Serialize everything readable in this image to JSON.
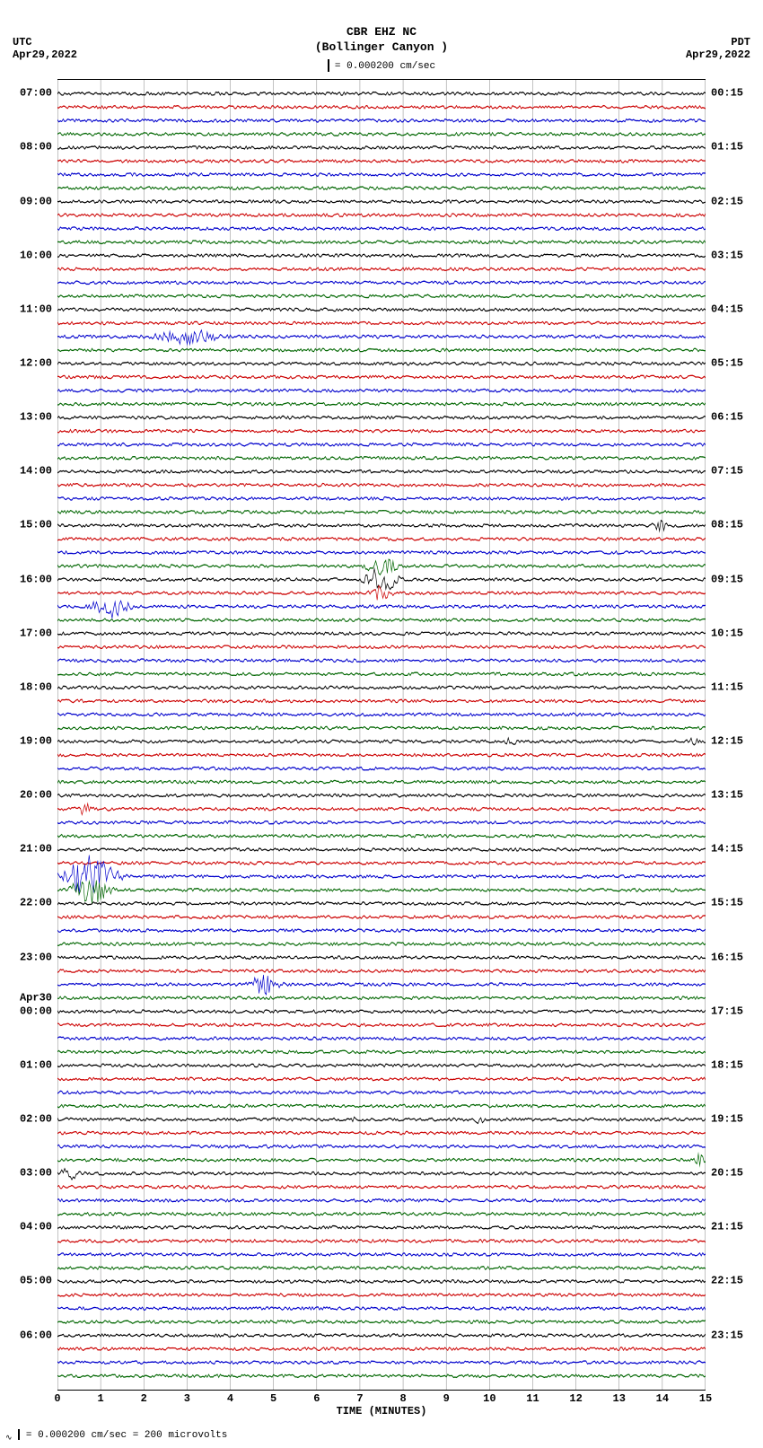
{
  "header": {
    "station": "CBR EHZ NC",
    "location": "(Bollinger Canyon )",
    "scale_text": "= 0.000200 cm/sec"
  },
  "corners": {
    "tl_line1": "UTC",
    "tl_line2": "Apr29,2022",
    "tr_line1": "PDT",
    "tr_line2": "Apr29,2022"
  },
  "footer": {
    "text": "= 0.000200 cm/sec =    200 microvolts"
  },
  "plot": {
    "background_color": "#ffffff",
    "grid_color": "#888888",
    "frame_color": "#000000",
    "trace_colors": [
      "#000000",
      "#cc0000",
      "#0000cc",
      "#006600"
    ],
    "x_axis": {
      "min": 0,
      "max": 15,
      "tick_step": 1,
      "ticks": [
        "0",
        "1",
        "2",
        "3",
        "4",
        "5",
        "6",
        "7",
        "8",
        "9",
        "10",
        "11",
        "12",
        "13",
        "14",
        "15"
      ],
      "title": "TIME (MINUTES)"
    },
    "n_traces": 96,
    "trace_amplitude_base": 0.0012,
    "left_labels": [
      {
        "idx": 0,
        "text": "07:00"
      },
      {
        "idx": 4,
        "text": "08:00"
      },
      {
        "idx": 8,
        "text": "09:00"
      },
      {
        "idx": 12,
        "text": "10:00"
      },
      {
        "idx": 16,
        "text": "11:00"
      },
      {
        "idx": 20,
        "text": "12:00"
      },
      {
        "idx": 24,
        "text": "13:00"
      },
      {
        "idx": 28,
        "text": "14:00"
      },
      {
        "idx": 32,
        "text": "15:00"
      },
      {
        "idx": 36,
        "text": "16:00"
      },
      {
        "idx": 40,
        "text": "17:00"
      },
      {
        "idx": 44,
        "text": "18:00"
      },
      {
        "idx": 48,
        "text": "19:00"
      },
      {
        "idx": 52,
        "text": "20:00"
      },
      {
        "idx": 56,
        "text": "21:00"
      },
      {
        "idx": 60,
        "text": "22:00"
      },
      {
        "idx": 64,
        "text": "23:00"
      },
      {
        "idx": 67,
        "text": "Apr30"
      },
      {
        "idx": 68,
        "text": "00:00"
      },
      {
        "idx": 72,
        "text": "01:00"
      },
      {
        "idx": 76,
        "text": "02:00"
      },
      {
        "idx": 80,
        "text": "03:00"
      },
      {
        "idx": 84,
        "text": "04:00"
      },
      {
        "idx": 88,
        "text": "05:00"
      },
      {
        "idx": 92,
        "text": "06:00"
      }
    ],
    "right_labels": [
      {
        "idx": 0,
        "text": "00:15"
      },
      {
        "idx": 4,
        "text": "01:15"
      },
      {
        "idx": 8,
        "text": "02:15"
      },
      {
        "idx": 12,
        "text": "03:15"
      },
      {
        "idx": 16,
        "text": "04:15"
      },
      {
        "idx": 20,
        "text": "05:15"
      },
      {
        "idx": 24,
        "text": "06:15"
      },
      {
        "idx": 28,
        "text": "07:15"
      },
      {
        "idx": 32,
        "text": "08:15"
      },
      {
        "idx": 36,
        "text": "09:15"
      },
      {
        "idx": 40,
        "text": "10:15"
      },
      {
        "idx": 44,
        "text": "11:15"
      },
      {
        "idx": 48,
        "text": "12:15"
      },
      {
        "idx": 52,
        "text": "13:15"
      },
      {
        "idx": 56,
        "text": "14:15"
      },
      {
        "idx": 60,
        "text": "15:15"
      },
      {
        "idx": 64,
        "text": "16:15"
      },
      {
        "idx": 68,
        "text": "17:15"
      },
      {
        "idx": 72,
        "text": "18:15"
      },
      {
        "idx": 76,
        "text": "19:15"
      },
      {
        "idx": 80,
        "text": "20:15"
      },
      {
        "idx": 84,
        "text": "21:15"
      },
      {
        "idx": 88,
        "text": "22:15"
      },
      {
        "idx": 92,
        "text": "23:15"
      }
    ],
    "events": [
      {
        "trace": 18,
        "x": 0.2,
        "width": 0.12,
        "amp_mult": 5.0
      },
      {
        "trace": 32,
        "x": 0.93,
        "width": 0.03,
        "amp_mult": 4.0
      },
      {
        "trace": 35,
        "x": 0.5,
        "width": 0.05,
        "amp_mult": 6.0
      },
      {
        "trace": 36,
        "x": 0.5,
        "width": 0.05,
        "amp_mult": 9.0
      },
      {
        "trace": 37,
        "x": 0.5,
        "width": 0.04,
        "amp_mult": 5.0
      },
      {
        "trace": 38,
        "x": 0.08,
        "width": 0.06,
        "amp_mult": 8.0
      },
      {
        "trace": 48,
        "x": 0.7,
        "width": 0.02,
        "amp_mult": 3.0
      },
      {
        "trace": 48,
        "x": 0.98,
        "width": 0.02,
        "amp_mult": 3.0
      },
      {
        "trace": 53,
        "x": 0.04,
        "width": 0.03,
        "amp_mult": 5.0
      },
      {
        "trace": 58,
        "x": 0.05,
        "width": 0.08,
        "amp_mult": 14.0
      },
      {
        "trace": 59,
        "x": 0.05,
        "width": 0.06,
        "amp_mult": 10.0
      },
      {
        "trace": 66,
        "x": 0.32,
        "width": 0.05,
        "amp_mult": 7.0
      },
      {
        "trace": 76,
        "x": 0.46,
        "width": 0.02,
        "amp_mult": 3.0
      },
      {
        "trace": 76,
        "x": 0.65,
        "width": 0.02,
        "amp_mult": 3.0
      },
      {
        "trace": 79,
        "x": 0.99,
        "width": 0.02,
        "amp_mult": 4.0
      },
      {
        "trace": 80,
        "x": 0.02,
        "width": 0.04,
        "amp_mult": 4.0
      }
    ]
  }
}
